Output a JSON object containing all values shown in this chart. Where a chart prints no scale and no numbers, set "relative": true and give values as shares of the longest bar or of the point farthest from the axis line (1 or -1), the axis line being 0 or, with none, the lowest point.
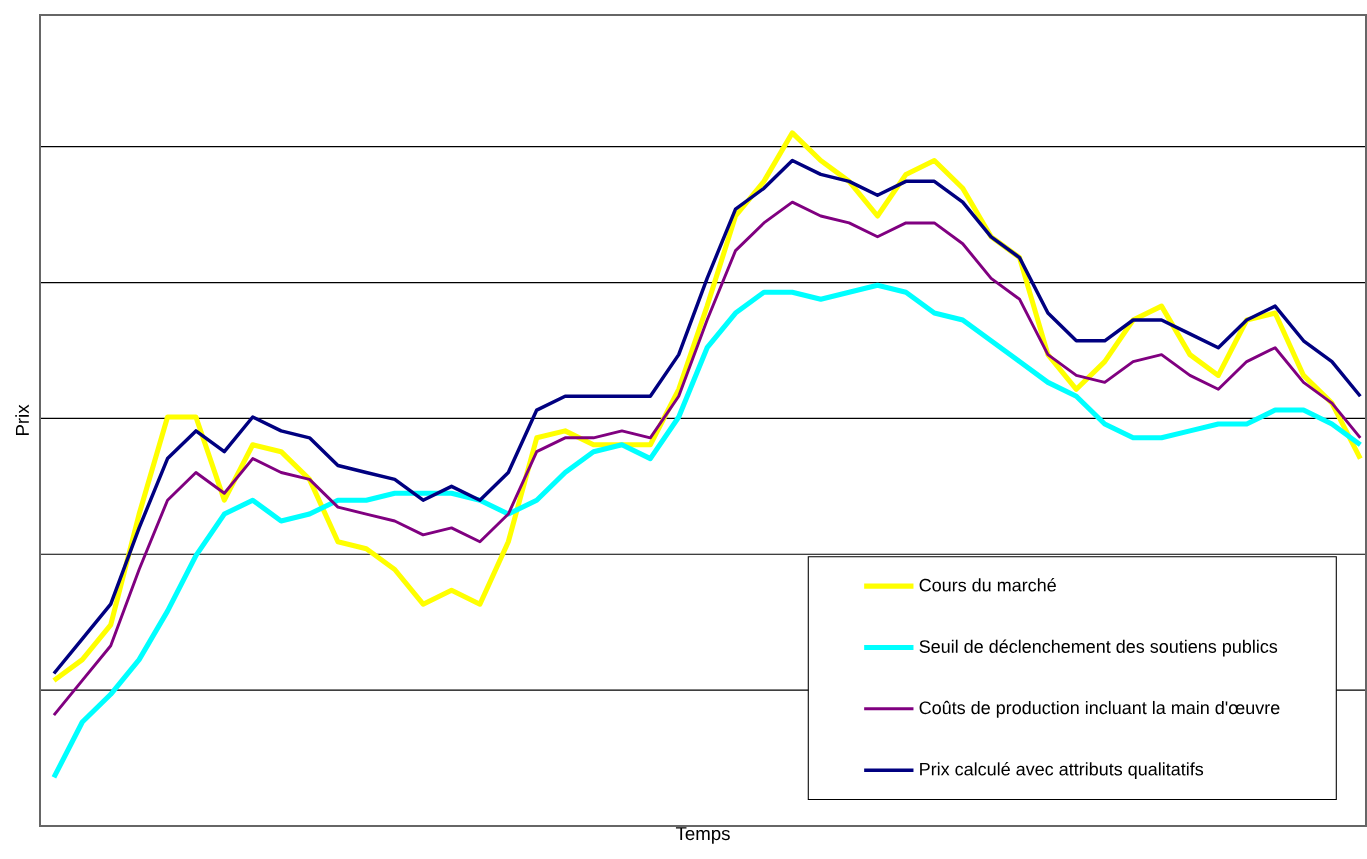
{
  "chart_data": {
    "type": "line",
    "relative": true,
    "xlabel": "Temps",
    "ylabel": "Prix",
    "categories": [
      null,
      null,
      null,
      null,
      null,
      null,
      null,
      null,
      null,
      null,
      null,
      null,
      null,
      null,
      null,
      null,
      null,
      null,
      null,
      null,
      null,
      null,
      null,
      null,
      null,
      null,
      null,
      null,
      null,
      null,
      null,
      null,
      null,
      null,
      null,
      null,
      null,
      null,
      null,
      null,
      null,
      null,
      null,
      null,
      null,
      null,
      null
    ],
    "series": [
      {
        "name": "Cours du marché",
        "color": "#ffff00",
        "values": [
          0.21,
          0.24,
          0.29,
          0.45,
          0.59,
          0.59,
          0.47,
          0.55,
          0.54,
          0.5,
          0.41,
          0.4,
          0.37,
          0.32,
          0.34,
          0.32,
          0.41,
          0.56,
          0.57,
          0.55,
          0.55,
          0.55,
          0.63,
          0.75,
          0.88,
          0.93,
          1,
          0.96,
          0.93,
          0.88,
          0.94,
          0.96,
          0.92,
          0.85,
          0.82,
          0.68,
          0.63,
          0.67,
          0.73,
          0.75,
          0.68,
          0.65,
          0.73,
          0.74,
          0.65,
          0.61,
          0.53
        ]
      },
      {
        "name": "Seuil de déclenchement des soutiens publics",
        "color": "#00ffff",
        "values": [
          0.07,
          0.15,
          0.19,
          0.24,
          0.31,
          0.39,
          0.45,
          0.47,
          0.44,
          0.45,
          0.47,
          0.47,
          0.48,
          0.48,
          0.48,
          0.47,
          0.45,
          0.47,
          0.51,
          0.54,
          0.55,
          0.53,
          0.59,
          0.69,
          0.74,
          0.77,
          0.77,
          0.76,
          0.77,
          0.78,
          0.77,
          0.74,
          0.73,
          0.7,
          0.67,
          0.64,
          0.62,
          0.58,
          0.56,
          0.56,
          0.57,
          0.58,
          0.58,
          0.6,
          0.6,
          0.58,
          0.55
        ]
      },
      {
        "name": "Coûts de production incluant la main d'œuvre",
        "color": "#800080",
        "values": [
          0.16,
          0.21,
          0.26,
          0.37,
          0.47,
          0.51,
          0.48,
          0.53,
          0.51,
          0.5,
          0.46,
          0.45,
          0.44,
          0.42,
          0.43,
          0.41,
          0.45,
          0.54,
          0.56,
          0.56,
          0.57,
          0.56,
          0.62,
          0.73,
          0.83,
          0.87,
          0.9,
          0.88,
          0.87,
          0.85,
          0.87,
          0.87,
          0.84,
          0.79,
          0.76,
          0.68,
          0.65,
          0.64,
          0.67,
          0.68,
          0.65,
          0.63,
          0.67,
          0.69,
          0.64,
          0.61,
          0.56
        ]
      },
      {
        "name": "Prix calculé avec attributs qualitatifs",
        "color": "#000080",
        "values": [
          0.22,
          0.27,
          0.32,
          0.43,
          0.53,
          0.57,
          0.54,
          0.59,
          0.57,
          0.56,
          0.52,
          0.51,
          0.5,
          0.47,
          0.49,
          0.47,
          0.51,
          0.6,
          0.62,
          0.62,
          0.62,
          0.62,
          0.68,
          0.79,
          0.89,
          0.92,
          0.96,
          0.94,
          0.93,
          0.91,
          0.93,
          0.93,
          0.9,
          0.85,
          0.82,
          0.74,
          0.7,
          0.7,
          0.73,
          0.73,
          0.71,
          0.69,
          0.73,
          0.75,
          0.7,
          0.67,
          0.62
        ]
      }
    ],
    "grid": "y",
    "legend": "bottom right"
  }
}
